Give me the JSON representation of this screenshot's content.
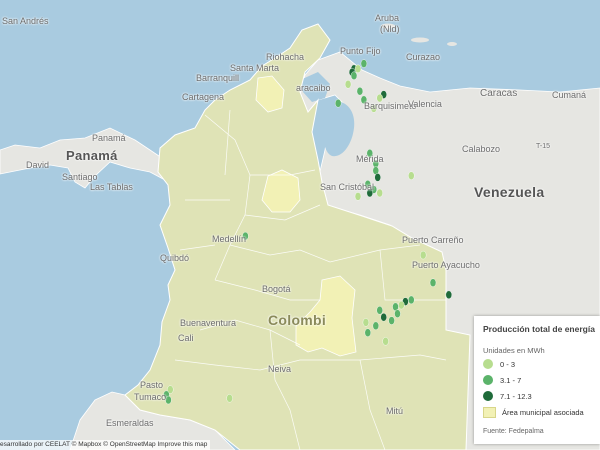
{
  "map": {
    "colors": {
      "water": "#a9cbe0",
      "land": "#e6e6e2",
      "municipal_area": "#dfe3b6",
      "highlight_area": "#f2f1b5",
      "border": "#ffffff"
    },
    "places": [
      {
        "id": "san-andres",
        "label": "San Andrés",
        "kind": "city"
      },
      {
        "id": "aruba",
        "label": "Aruba",
        "kind": "city"
      },
      {
        "id": "nld",
        "label": "(Nld)",
        "kind": "city"
      },
      {
        "id": "punto-fijo",
        "label": "Punto Fijo",
        "kind": "city"
      },
      {
        "id": "curazao",
        "label": "Curazao",
        "kind": "city"
      },
      {
        "id": "riohacha",
        "label": "Riohacha",
        "kind": "city"
      },
      {
        "id": "santa-marta",
        "label": "Santa Marta",
        "kind": "city"
      },
      {
        "id": "barranquilla",
        "label": "Barranquill",
        "kind": "city"
      },
      {
        "id": "maracaibo",
        "label": "aracaibo",
        "kind": "city"
      },
      {
        "id": "cartagena",
        "label": "Cartagena",
        "kind": "city"
      },
      {
        "id": "caracas",
        "label": "Caracas",
        "kind": "city"
      },
      {
        "id": "cumana",
        "label": "Cumaná",
        "kind": "city"
      },
      {
        "id": "barquisimeto",
        "label": "Barquisimeto",
        "kind": "city"
      },
      {
        "id": "valencia",
        "label": "Valencia",
        "kind": "city"
      },
      {
        "id": "panama-city",
        "label": "Panamá",
        "kind": "city"
      },
      {
        "id": "panama",
        "label": "Panamá",
        "kind": "country"
      },
      {
        "id": "david",
        "label": "David",
        "kind": "city"
      },
      {
        "id": "santiago",
        "label": "Santiago",
        "kind": "city"
      },
      {
        "id": "las-tablas",
        "label": "Las Tablas",
        "kind": "city"
      },
      {
        "id": "merida",
        "label": "Mérida",
        "kind": "city"
      },
      {
        "id": "calabozo",
        "label": "Calabozo",
        "kind": "city"
      },
      {
        "id": "t15",
        "label": "T-15",
        "kind": "road"
      },
      {
        "id": "san-cristobal",
        "label": "San Cristóbal",
        "kind": "city"
      },
      {
        "id": "venezuela",
        "label": "Venezuela",
        "kind": "country"
      },
      {
        "id": "medellin",
        "label": "Medellín",
        "kind": "city"
      },
      {
        "id": "puerto-carreno",
        "label": "Puerto Carreño",
        "kind": "city"
      },
      {
        "id": "quibdo",
        "label": "Quibdó",
        "kind": "city"
      },
      {
        "id": "puerto-ayacucho",
        "label": "Puerto Ayacucho",
        "kind": "city"
      },
      {
        "id": "bogota",
        "label": "Bogotá",
        "kind": "city"
      },
      {
        "id": "colombia",
        "label": "Colombi",
        "kind": "country"
      },
      {
        "id": "buenaventura",
        "label": "Buenaventura",
        "kind": "city"
      },
      {
        "id": "cali",
        "label": "Cali",
        "kind": "city"
      },
      {
        "id": "neiva",
        "label": "Neiva",
        "kind": "city"
      },
      {
        "id": "pasto",
        "label": "Pasto",
        "kind": "city"
      },
      {
        "id": "tumaco",
        "label": "Tumaco",
        "kind": "city"
      },
      {
        "id": "esmeraldas",
        "label": "Esmeraldas",
        "kind": "city"
      },
      {
        "id": "mitu",
        "label": "Mitú",
        "kind": "city"
      }
    ],
    "dots": [
      {
        "lat": 11.2,
        "lon": -73.8,
        "cls": 2
      },
      {
        "lat": 11.05,
        "lon": -74.05,
        "cls": 3
      },
      {
        "lat": 11.05,
        "lon": -73.95,
        "cls": 1
      },
      {
        "lat": 10.95,
        "lon": -74.1,
        "cls": 3
      },
      {
        "lat": 10.85,
        "lon": -74.05,
        "cls": 2
      },
      {
        "lat": 10.6,
        "lon": -74.2,
        "cls": 1
      },
      {
        "lat": 10.4,
        "lon": -73.9,
        "cls": 2
      },
      {
        "lat": 10.3,
        "lon": -73.3,
        "cls": 3
      },
      {
        "lat": 10.2,
        "lon": -73.4,
        "cls": 1
      },
      {
        "lat": 10.15,
        "lon": -73.8,
        "cls": 2
      },
      {
        "lat": 10.05,
        "lon": -74.45,
        "cls": 2
      },
      {
        "lat": 9.9,
        "lon": -73.55,
        "cls": 1
      },
      {
        "lat": 8.6,
        "lon": -73.65,
        "cls": 2
      },
      {
        "lat": 8.3,
        "lon": -73.5,
        "cls": 2
      },
      {
        "lat": 8.1,
        "lon": -73.5,
        "cls": 2
      },
      {
        "lat": 7.9,
        "lon": -73.45,
        "cls": 3
      },
      {
        "lat": 7.7,
        "lon": -73.7,
        "cls": 2
      },
      {
        "lat": 7.55,
        "lon": -73.55,
        "cls": 2
      },
      {
        "lat": 7.45,
        "lon": -73.65,
        "cls": 3
      },
      {
        "lat": 7.35,
        "lon": -73.95,
        "cls": 1
      },
      {
        "lat": 7.45,
        "lon": -73.4,
        "cls": 1
      },
      {
        "lat": 7.95,
        "lon": -72.6,
        "cls": 1
      },
      {
        "lat": 5.65,
        "lon": -72.3,
        "cls": 1
      },
      {
        "lat": 4.85,
        "lon": -72.05,
        "cls": 2
      },
      {
        "lat": 4.5,
        "lon": -71.65,
        "cls": 3
      },
      {
        "lat": 4.35,
        "lon": -72.6,
        "cls": 2
      },
      {
        "lat": 4.3,
        "lon": -72.75,
        "cls": 3
      },
      {
        "lat": 4.2,
        "lon": -72.85,
        "cls": 1
      },
      {
        "lat": 4.15,
        "lon": -73.0,
        "cls": 2
      },
      {
        "lat": 4.05,
        "lon": -73.4,
        "cls": 2
      },
      {
        "lat": 3.95,
        "lon": -72.95,
        "cls": 2
      },
      {
        "lat": 3.85,
        "lon": -73.3,
        "cls": 3
      },
      {
        "lat": 3.75,
        "lon": -73.1,
        "cls": 2
      },
      {
        "lat": 3.7,
        "lon": -73.75,
        "cls": 1
      },
      {
        "lat": 3.6,
        "lon": -73.5,
        "cls": 2
      },
      {
        "lat": 3.4,
        "lon": -73.7,
        "cls": 2
      },
      {
        "lat": 3.15,
        "lon": -73.25,
        "cls": 1
      },
      {
        "lat": 1.75,
        "lon": -78.7,
        "cls": 1
      },
      {
        "lat": 1.6,
        "lon": -78.8,
        "cls": 2
      },
      {
        "lat": 1.45,
        "lon": -78.75,
        "cls": 2
      },
      {
        "lat": 1.5,
        "lon": -77.2,
        "cls": 1
      },
      {
        "lat": 6.2,
        "lon": -76.8,
        "cls": 2
      }
    ]
  },
  "legend": {
    "title": "Producción total de energía",
    "subtitle": "Unidades en MWh",
    "classes": [
      {
        "label": "0 - 3",
        "color": "#b7dd8f"
      },
      {
        "label": "3.1 - 7",
        "color": "#5bb36a"
      },
      {
        "label": "7.1 - 12.3",
        "color": "#1f6b3a"
      }
    ],
    "area_label": "Área municipal asociada",
    "area_color": "#f2f1b5",
    "source": "Fuente: Fedepalma"
  },
  "attribution": {
    "prefix": "esarrollado por CEELAT © Mapbox © OpenStreetMap",
    "improve": "Improve this map"
  }
}
